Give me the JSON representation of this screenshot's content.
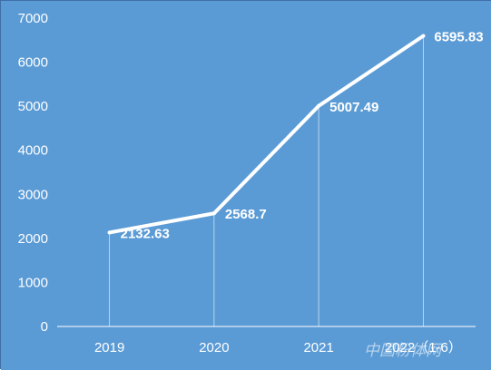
{
  "chart_data": {
    "type": "line",
    "title": "",
    "xlabel": "",
    "ylabel": "",
    "categories": [
      "2019",
      "2020",
      "2021",
      "2022（1-6）"
    ],
    "series": [
      {
        "values": [
          2132.63,
          2568.7,
          5007.49,
          6595.83
        ]
      }
    ],
    "data_labels": [
      "2132.63",
      "2568.7",
      "5007.49",
      "6595.83"
    ],
    "y_ticks": [
      "0",
      "1000",
      "2000",
      "3000",
      "4000",
      "5000",
      "6000",
      "7000"
    ],
    "ylim": [
      0,
      7000
    ],
    "grid": false,
    "drop_lines": true,
    "legend": "none"
  },
  "colors": {
    "background": "#5b9bd5",
    "line": "#ffffff",
    "axis": "#ffffff"
  },
  "watermark": {
    "text": "中国粉体网"
  }
}
